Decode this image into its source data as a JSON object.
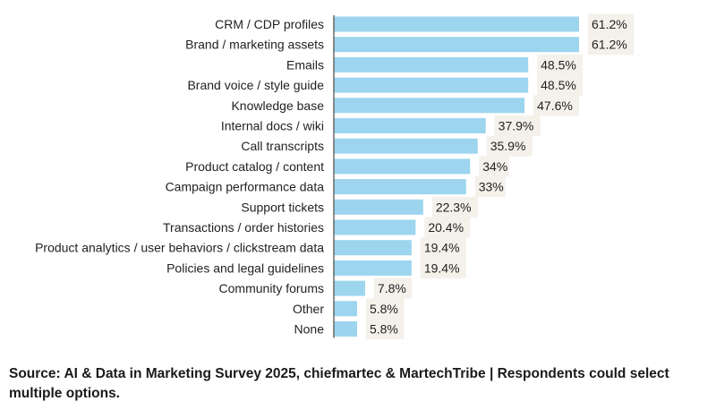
{
  "chart_data": {
    "type": "bar",
    "orientation": "horizontal",
    "categories": [
      "CRM / CDP profiles",
      "Brand / marketing assets",
      "Emails",
      "Brand voice / style guide",
      "Knowledge base",
      "Internal docs / wiki",
      "Call transcripts",
      "Product catalog / content",
      "Campaign performance data",
      "Support tickets",
      "Transactions / order histories",
      "Product analytics / user behaviors / clickstream data",
      "Policies and legal guidelines",
      "Community forums",
      "Other",
      "None"
    ],
    "values": [
      61.2,
      61.2,
      48.5,
      48.5,
      47.6,
      37.9,
      35.9,
      34,
      33,
      22.3,
      20.4,
      19.4,
      19.4,
      7.8,
      5.8,
      5.8
    ],
    "data_labels": [
      "61.2%",
      "61.2%",
      "48.5%",
      "48.5%",
      "47.6%",
      "37.9%",
      "35.9%",
      "34%",
      "33%",
      "22.3%",
      "20.4%",
      "19.4%",
      "19.4%",
      "7.8%",
      "5.8%",
      "5.8%"
    ],
    "unit": "%",
    "xlim": [
      0,
      61.2
    ],
    "grid": false,
    "colors": {
      "bar": "#9dd5ee",
      "label_bg": "#f4f0ea",
      "axis": "#555555"
    }
  },
  "source_note": "Source: AI & Data in Marketing Survey 2025, chiefmartec & MartechTribe | Respondents could select multiple options."
}
